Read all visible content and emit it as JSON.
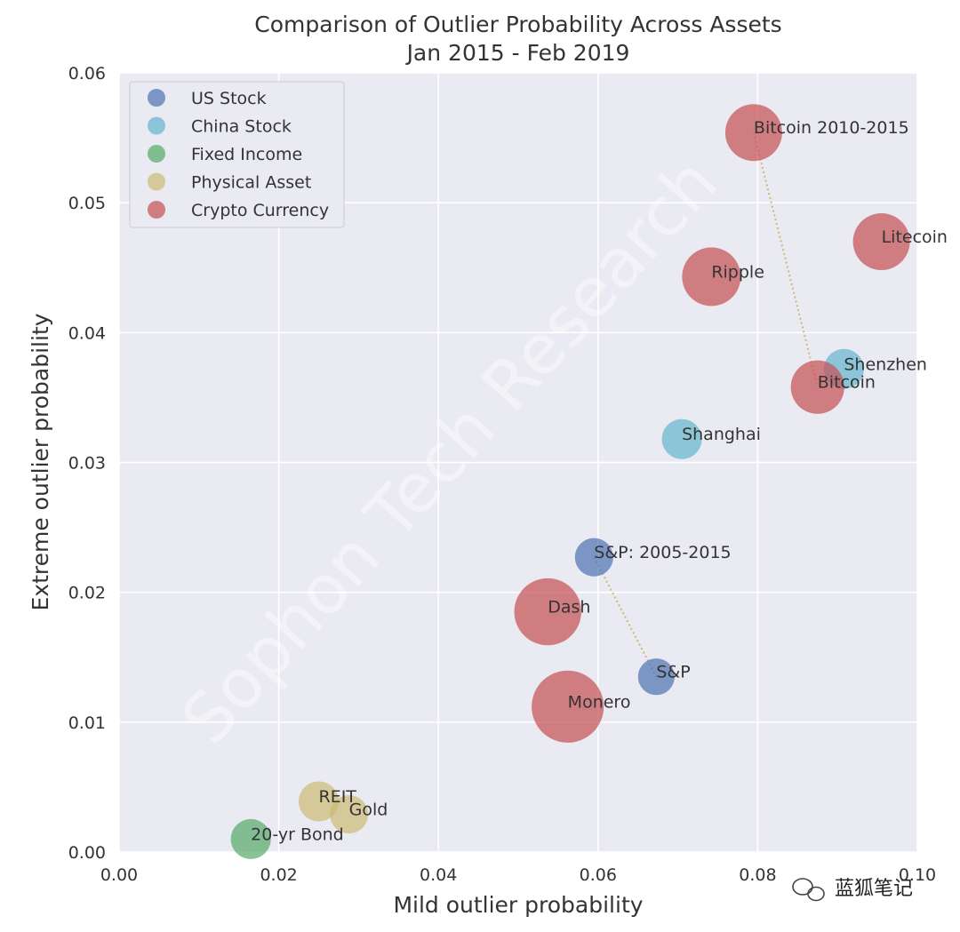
{
  "chart_data": {
    "type": "scatter",
    "title": "Comparison of Outlier Probability Across Assets",
    "subtitle": "Jan 2015 - Feb 2019",
    "xlabel": "Mild outlier probability",
    "ylabel": "Extreme outlier probability",
    "xlim": [
      0,
      0.1
    ],
    "ylim": [
      0,
      0.06
    ],
    "xticks": [
      "0.00",
      "0.02",
      "0.04",
      "0.06",
      "0.08",
      "0.10"
    ],
    "yticks": [
      "0.00",
      "0.01",
      "0.02",
      "0.03",
      "0.04",
      "0.05",
      "0.06"
    ],
    "grid": true,
    "legend_position": "top-left",
    "categories": [
      {
        "name": "US Stock",
        "color": "#4c72b0"
      },
      {
        "name": "China Stock",
        "color": "#64b5cd"
      },
      {
        "name": "Fixed Income",
        "color": "#55a868"
      },
      {
        "name": "Physical Asset",
        "color": "#ccb974"
      },
      {
        "name": "Crypto Currency",
        "color": "#c44e52"
      }
    ],
    "points": [
      {
        "label": "Bitcoin 2010-2015",
        "category": "Crypto Currency",
        "x": 0.0795,
        "y": 0.0554,
        "size": 1.0
      },
      {
        "label": "Litecoin",
        "category": "Crypto Currency",
        "x": 0.0955,
        "y": 0.047,
        "size": 1.0
      },
      {
        "label": "Ripple",
        "category": "Crypto Currency",
        "x": 0.0742,
        "y": 0.0443,
        "size": 1.05
      },
      {
        "label": "Shenzhen",
        "category": "China Stock",
        "x": 0.0908,
        "y": 0.0372,
        "size": 0.5
      },
      {
        "label": "Bitcoin",
        "category": "Crypto Currency",
        "x": 0.0875,
        "y": 0.0358,
        "size": 0.9
      },
      {
        "label": "Shanghai",
        "category": "China Stock",
        "x": 0.0705,
        "y": 0.0318,
        "size": 0.5
      },
      {
        "label": "S&P: 2005-2015",
        "category": "US Stock",
        "x": 0.0595,
        "y": 0.0227,
        "size": 0.45
      },
      {
        "label": "Dash",
        "category": "Crypto Currency",
        "x": 0.0537,
        "y": 0.0185,
        "size": 1.3
      },
      {
        "label": "S&P",
        "category": "US Stock",
        "x": 0.0673,
        "y": 0.0135,
        "size": 0.4
      },
      {
        "label": "Monero",
        "category": "Crypto Currency",
        "x": 0.0562,
        "y": 0.0112,
        "size": 1.45
      },
      {
        "label": "REIT",
        "category": "Physical Asset",
        "x": 0.025,
        "y": 0.0039,
        "size": 0.5
      },
      {
        "label": "Gold",
        "category": "Physical Asset",
        "x": 0.0288,
        "y": 0.0029,
        "size": 0.45
      },
      {
        "label": "20-yr Bond",
        "category": "Fixed Income",
        "x": 0.0165,
        "y": 0.001,
        "size": 0.5
      }
    ],
    "connectors": [
      {
        "from": "Bitcoin 2010-2015",
        "to": "Bitcoin"
      },
      {
        "from": "S&P: 2005-2015",
        "to": "S&P"
      }
    ],
    "connector_color": "#ccb974"
  },
  "watermark": "Sophon Tech Research",
  "wechat_badge": "蓝狐笔记"
}
